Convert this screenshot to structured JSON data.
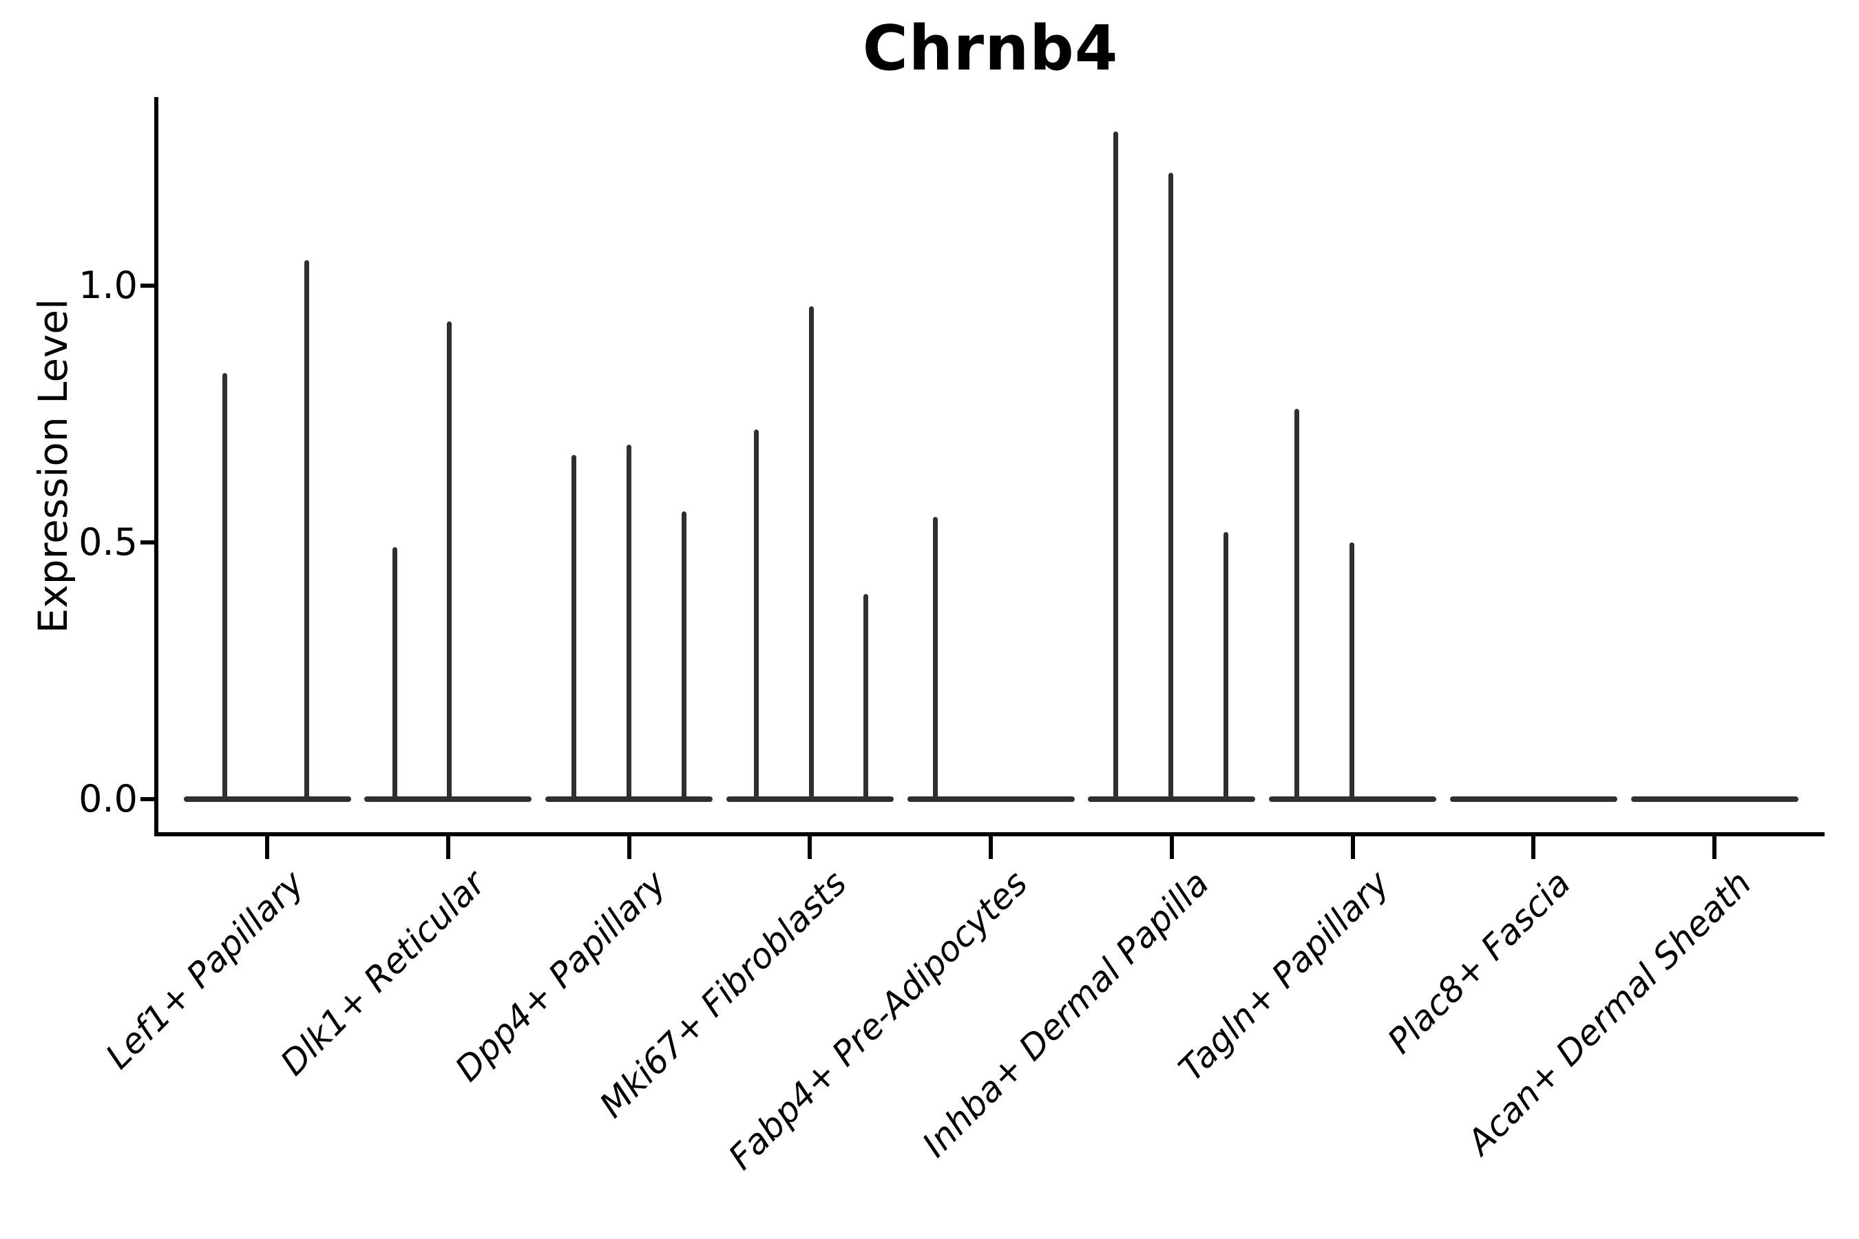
{
  "title": "Chrnb4",
  "chart_data": {
    "type": "violin",
    "title": "Chrnb4",
    "xlabel": "",
    "ylabel": "Expression Level",
    "ylim": [
      0,
      1.37
    ],
    "yticks": [
      {
        "label": "0.0",
        "value": 0.0
      },
      {
        "label": "0.5",
        "value": 0.5
      },
      {
        "label": "1.0",
        "value": 1.0
      }
    ],
    "grid": false,
    "legend": false,
    "colors": {
      "violin": "#2e2f31",
      "axis": "#000000",
      "text": "#000000",
      "background": "#ffffff"
    },
    "categories": [
      "Lef1+ Papillary",
      "Dlk1+ Reticular",
      "Dpp4+ Papillary",
      "Mki67+ Fibroblasts",
      "Fabp4+ Pre-Adipocytes",
      "Inhba+ Dermal Papilla",
      "Tagln+ Papillary",
      "Plac8+ Fascia",
      "Acan+ Dermal Sheath"
    ],
    "violins": [
      {
        "category": "Lef1+ Papillary",
        "spikes": [
          {
            "offset": -0.235,
            "max": 0.83
          },
          {
            "offset": 0.22,
            "max": 1.05
          }
        ]
      },
      {
        "category": "Dlk1+ Reticular",
        "spikes": [
          {
            "offset": -0.295,
            "max": 0.49
          },
          {
            "offset": 0.005,
            "max": 0.93
          }
        ]
      },
      {
        "category": "Dpp4+ Papillary",
        "spikes": [
          {
            "offset": -0.305,
            "max": 0.67
          },
          {
            "offset": 0.0,
            "max": 0.69
          },
          {
            "offset": 0.305,
            "max": 0.56
          }
        ]
      },
      {
        "category": "Mki67+ Fibroblasts",
        "spikes": [
          {
            "offset": -0.295,
            "max": 0.72
          },
          {
            "offset": 0.01,
            "max": 0.96
          },
          {
            "offset": 0.31,
            "max": 0.4
          }
        ]
      },
      {
        "category": "Fabp4+ Pre-Adipocytes",
        "spikes": [
          {
            "offset": -0.305,
            "max": 0.55
          }
        ]
      },
      {
        "category": "Inhba+ Dermal Papilla",
        "spikes": [
          {
            "offset": -0.31,
            "max": 1.3
          },
          {
            "offset": -0.005,
            "max": 1.22
          },
          {
            "offset": 0.3,
            "max": 0.52
          }
        ]
      },
      {
        "category": "Tagln+ Papillary",
        "spikes": [
          {
            "offset": -0.31,
            "max": 0.76
          },
          {
            "offset": -0.005,
            "max": 0.5
          }
        ]
      },
      {
        "category": "Plac8+ Fascia",
        "spikes": []
      },
      {
        "category": "Acan+ Dermal Sheath",
        "spikes": []
      }
    ]
  }
}
